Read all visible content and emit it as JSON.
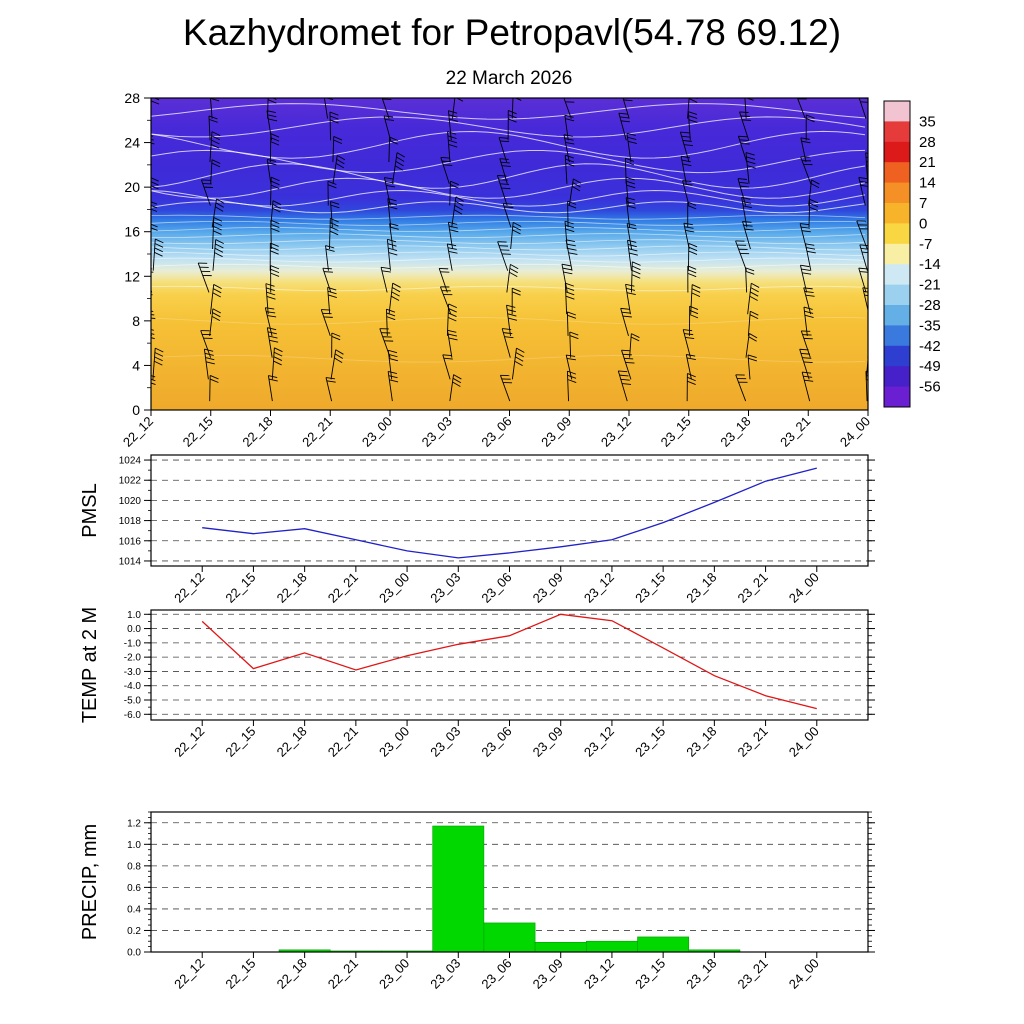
{
  "title": "Kazhydromet for Petropavl(54.78 69.12)",
  "subtitle": "22 March 2026",
  "time_labels": [
    "22_12",
    "22_15",
    "22_18",
    "22_21",
    "23_00",
    "23_03",
    "23_06",
    "23_09",
    "23_12",
    "23_15",
    "23_18",
    "23_21",
    "24_00"
  ],
  "chart_data": [
    {
      "name": "vertical-profile",
      "type": "heatmap",
      "ylim": [
        0,
        28
      ],
      "yticks": [
        0,
        4,
        8,
        12,
        16,
        20,
        24,
        28
      ],
      "colorbar_ticks": [
        35,
        28,
        21,
        14,
        7,
        0,
        -7,
        -14,
        -21,
        -28,
        -35,
        -42,
        -49,
        -56
      ],
      "colorbar_colors": [
        "#f2c3d0",
        "#e63b3b",
        "#dc1a1a",
        "#ee6120",
        "#f59026",
        "#f7b42b",
        "#f8d743",
        "#f8efa5",
        "#cfe9f4",
        "#9bd1ee",
        "#63afe6",
        "#3a79de",
        "#2e3ed0",
        "#4620c8",
        "#6a20d2"
      ],
      "gradient_stops": [
        {
          "pos": 0.0,
          "color": "#5b2fd6"
        },
        {
          "pos": 0.1,
          "color": "#4729d8"
        },
        {
          "pos": 0.22,
          "color": "#3f2ad8"
        },
        {
          "pos": 0.32,
          "color": "#3a31da"
        },
        {
          "pos": 0.36,
          "color": "#3046dc"
        },
        {
          "pos": 0.39,
          "color": "#2f7ae4"
        },
        {
          "pos": 0.43,
          "color": "#57a8ea"
        },
        {
          "pos": 0.475,
          "color": "#8fcaf0"
        },
        {
          "pos": 0.52,
          "color": "#c3e3f3"
        },
        {
          "pos": 0.555,
          "color": "#e9edd4"
        },
        {
          "pos": 0.59,
          "color": "#f6e07c"
        },
        {
          "pos": 0.63,
          "color": "#f8d04b"
        },
        {
          "pos": 0.72,
          "color": "#f6c136"
        },
        {
          "pos": 1.0,
          "color": "#efa92b"
        }
      ],
      "wind_barb_color": "#000000"
    },
    {
      "name": "pmsl",
      "type": "line",
      "ylabel": "PMSL",
      "color": "#2121c8",
      "ylim": [
        1013.5,
        1024.5
      ],
      "yticks": [
        1024,
        1022,
        1020,
        1018,
        1016,
        1014
      ],
      "minor_step": 1,
      "decimals": 0,
      "values": [
        1017.3,
        1016.7,
        1017.2,
        1016.1,
        1015.0,
        1014.3,
        1014.8,
        1015.4,
        1016.1,
        1017.8,
        1019.8,
        1021.9,
        1023.2
      ]
    },
    {
      "name": "temp-2m",
      "type": "line",
      "ylabel": "TEMP at 2 M",
      "color": "#e01616",
      "ylim": [
        -6.4,
        1.3
      ],
      "yticks": [
        1.0,
        0.0,
        -1.0,
        -2.0,
        -3.0,
        -4.0,
        -5.0,
        -6.0
      ],
      "minor_step": 0.5,
      "decimals": 1,
      "values": [
        0.5,
        -2.8,
        -1.7,
        -2.9,
        -1.9,
        -1.1,
        -0.5,
        1.0,
        0.55,
        -1.35,
        -3.3,
        -4.7,
        -5.6
      ]
    },
    {
      "name": "precip",
      "type": "bar",
      "ylabel": "PRECIP, mm",
      "color": "#00d800",
      "edge_color": "#00a000",
      "ylim": [
        0,
        1.3
      ],
      "yticks": [
        1.2,
        1.0,
        0.8,
        0.6,
        0.4,
        0.2,
        0.0
      ],
      "minor_step": 0.05,
      "decimals": 1,
      "values": [
        0,
        0,
        0.02,
        0.01,
        0.01,
        1.17,
        0.27,
        0.09,
        0.1,
        0.14,
        0.02,
        0,
        0
      ]
    }
  ]
}
